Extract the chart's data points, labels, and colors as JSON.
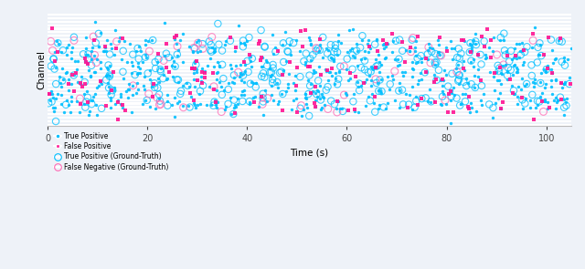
{
  "title": "",
  "xlabel": "Time (s)",
  "ylabel": "Channel",
  "xlim": [
    0,
    105
  ],
  "x_ticks": [
    0,
    20,
    40,
    60,
    80,
    100
  ],
  "num_channels": 30,
  "time_range": 105,
  "seed": 42,
  "tp_color": "#00bfff",
  "fp_color": "#ff1493",
  "tp_gt_color": "#00bfff",
  "fn_gt_color": "#ff69b4",
  "background_color": "#eef2f8",
  "stripe_color": "#ffffff",
  "legend_labels": [
    "True Positive",
    "False Positive",
    "True Positive (Ground-Truth)",
    "False Negative (Ground-Truth)"
  ],
  "figsize": [
    6.4,
    2.95
  ],
  "dpi": 100,
  "n_tp": 700,
  "n_fp": 150,
  "n_tp_gt": 280,
  "n_fn_gt": 45
}
